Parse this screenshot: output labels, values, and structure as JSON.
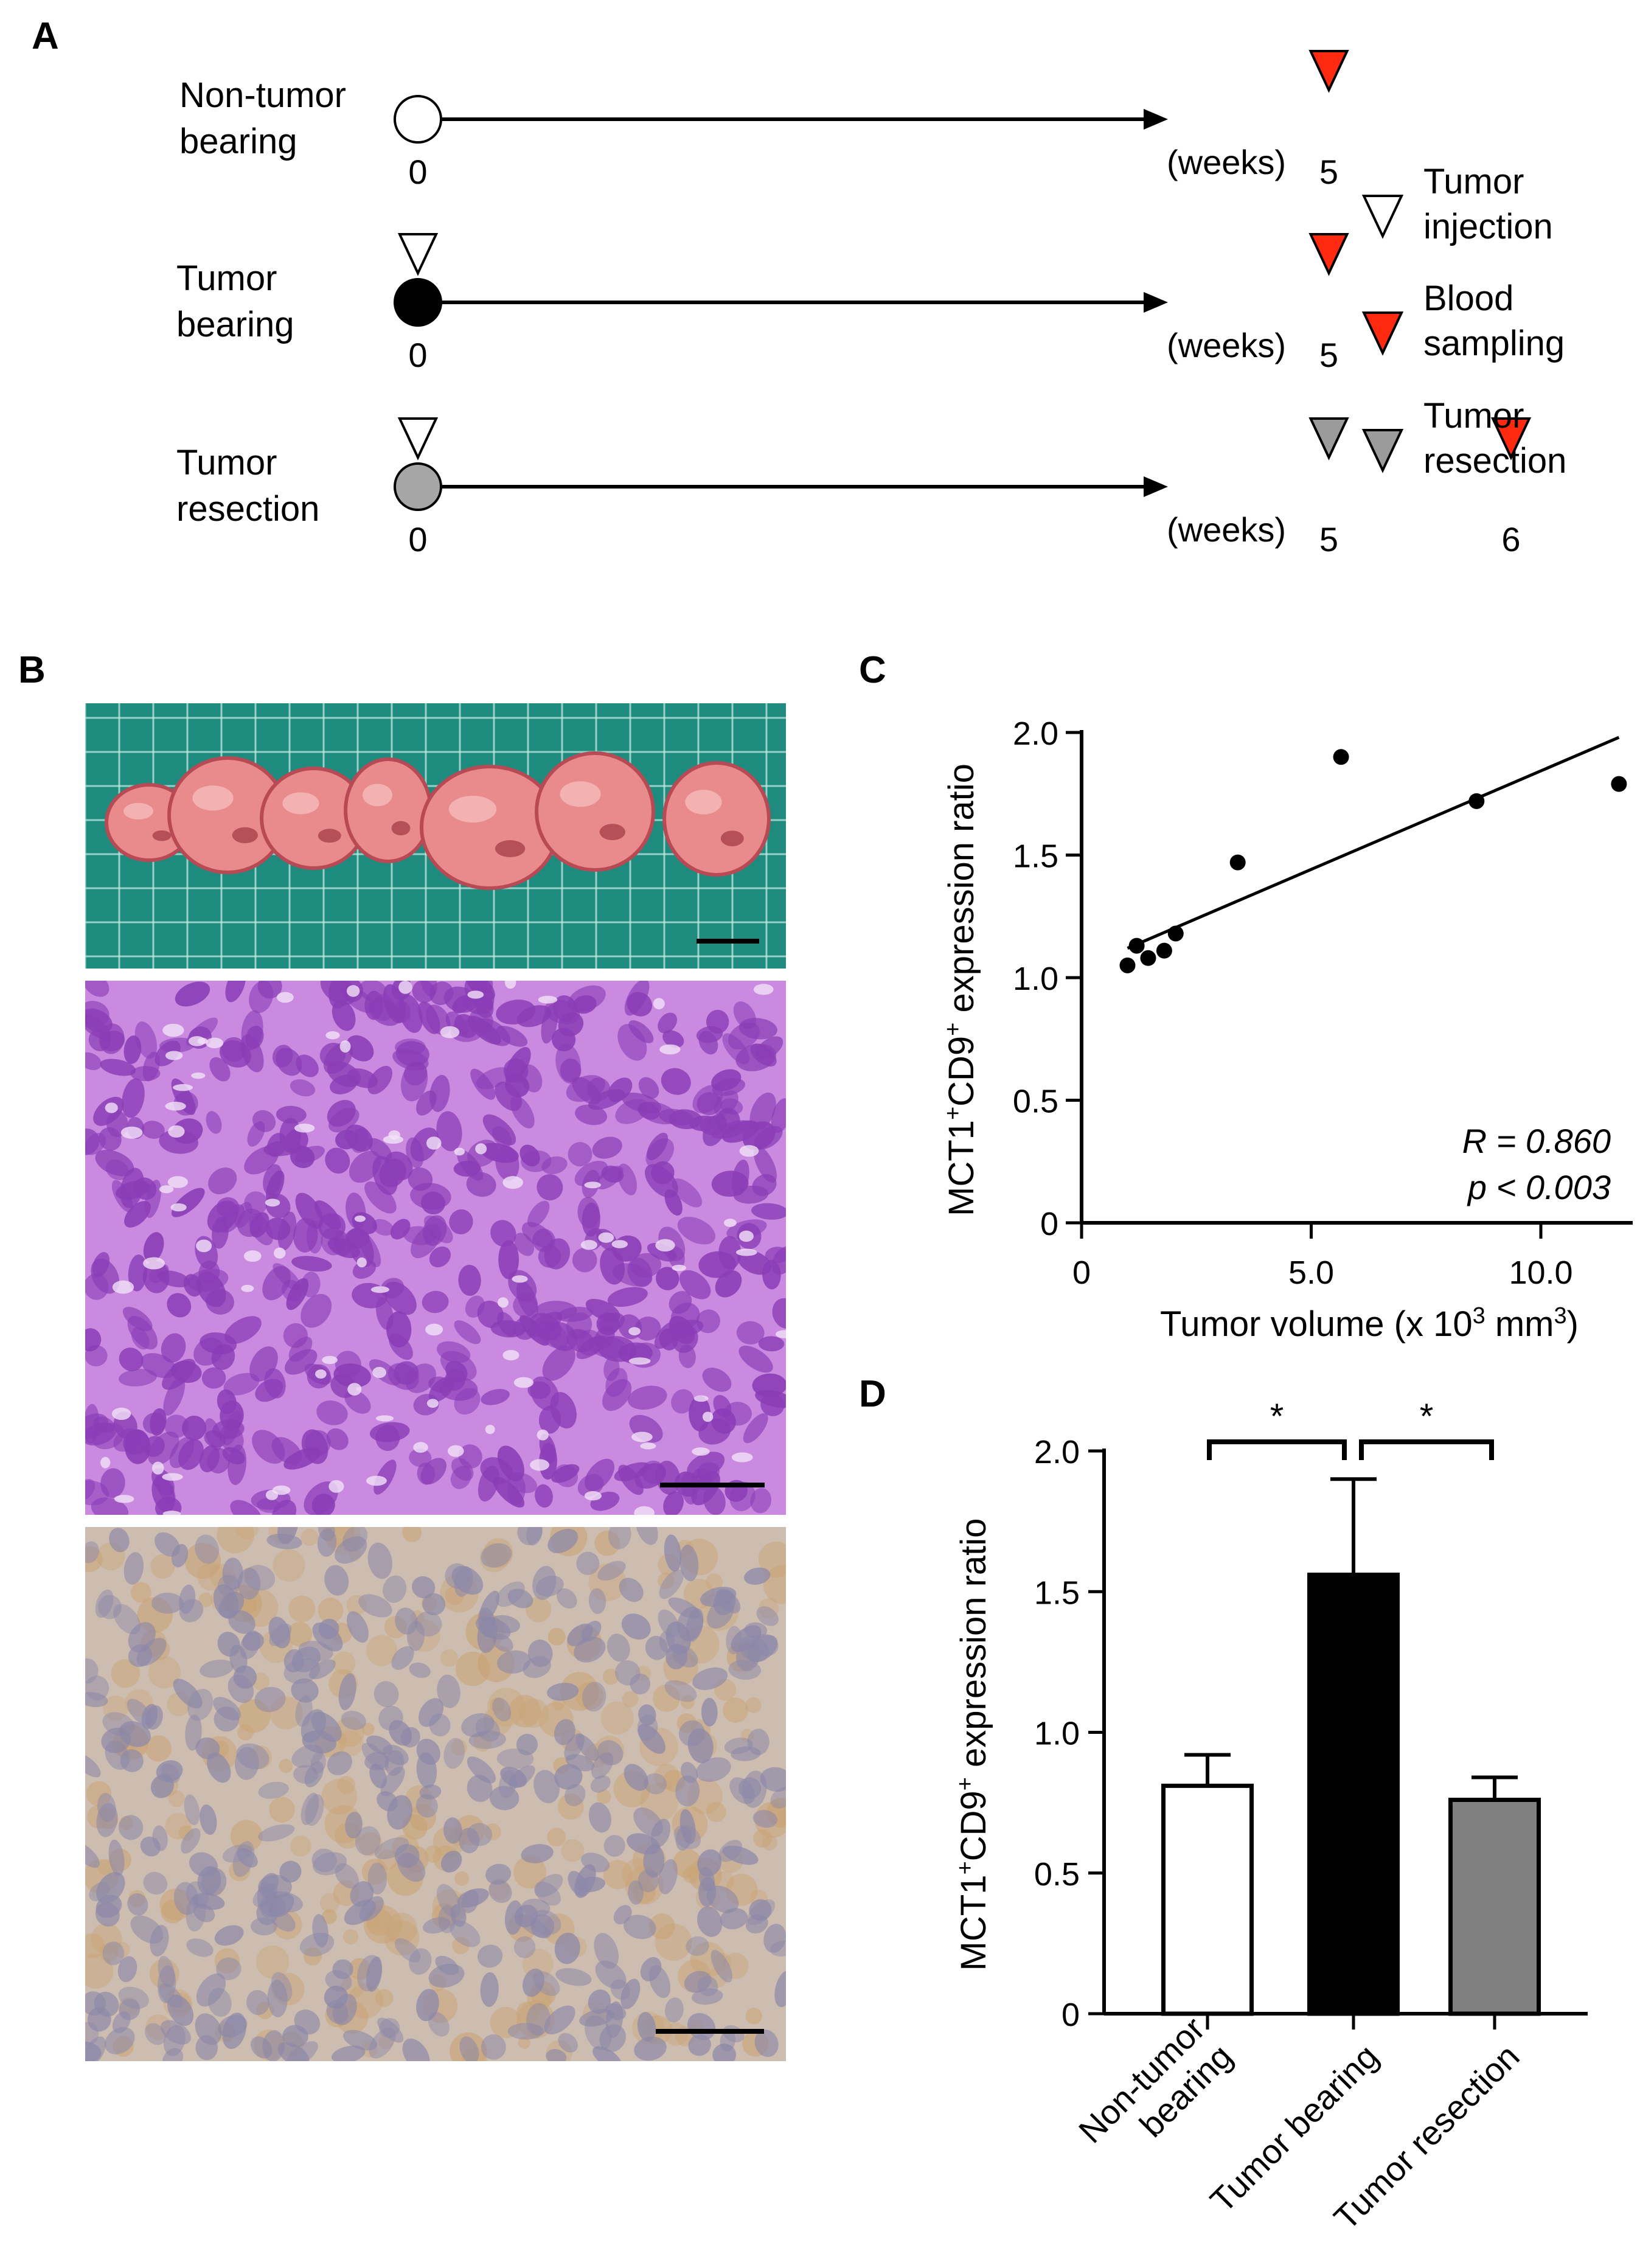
{
  "panels": {
    "A": {
      "letter": "A",
      "timelines": [
        {
          "label_lines": [
            "Non-tumor",
            "bearing"
          ],
          "circle_fill": "#ffffff",
          "ticks": [
            {
              "week": 0,
              "label": "0"
            },
            {
              "week": 5,
              "label": "5"
            }
          ],
          "markers": [
            {
              "week": 5,
              "type": "blood-sampling"
            }
          ],
          "unit": "(weeks)"
        },
        {
          "label_lines": [
            "Tumor",
            "bearing"
          ],
          "circle_fill": "#000000",
          "ticks": [
            {
              "week": 0,
              "label": "0"
            },
            {
              "week": 5,
              "label": "5"
            }
          ],
          "markers": [
            {
              "week": 0,
              "type": "tumor-injection"
            },
            {
              "week": 5,
              "type": "blood-sampling"
            }
          ],
          "unit": "(weeks)"
        },
        {
          "label_lines": [
            "Tumor",
            "resection"
          ],
          "circle_fill": "#a6a6a6",
          "ticks": [
            {
              "week": 0,
              "label": "0"
            },
            {
              "week": 5,
              "label": "5"
            },
            {
              "week": 6,
              "label": "6"
            }
          ],
          "markers": [
            {
              "week": 0,
              "type": "tumor-injection"
            },
            {
              "week": 5,
              "type": "tumor-resection"
            },
            {
              "week": 6,
              "type": "blood-sampling"
            }
          ],
          "unit": "(weeks)"
        }
      ],
      "legend": [
        {
          "type": "tumor-injection",
          "lines": [
            "Tumor",
            "injection"
          ]
        },
        {
          "type": "blood-sampling",
          "lines": [
            "Blood",
            "sampling"
          ]
        },
        {
          "type": "tumor-resection",
          "lines": [
            "Tumor",
            "resection"
          ]
        }
      ],
      "marker_colors": {
        "tumor-injection": "#ffffff",
        "blood-sampling": "#ff2a10",
        "tumor-resection": "#9b9b9b"
      }
    },
    "B": {
      "letter": "B",
      "tumor_photo": {
        "background": "#1f8a7e",
        "grid_color": "#bfe8e0",
        "tumor_color": "#e98a8c",
        "tumor_count": 7
      },
      "he_stain": {
        "background": "#c98ae0",
        "nucleus_color": "#8a3db6"
      },
      "ihc_stain": {
        "background": "#cdbdb0",
        "nucleus_color": "#8c88a8",
        "stain_color": "#c9a476"
      }
    },
    "C": {
      "letter": "C",
      "stats": [
        "R = 0.860",
        "p < 0.003"
      ]
    },
    "D": {
      "letter": "D",
      "significance": [
        "*",
        "*"
      ]
    }
  },
  "chart_data": [
    {
      "type": "scatter",
      "panel": "C",
      "xlabel_main": "Tumor volume (x 10",
      "xlabel_sup": "3",
      "xlabel_mid": " mm",
      "xlabel_sup2": "3",
      "xlabel_end": ")",
      "ylabel_parts": [
        "MCT1",
        "+",
        "CD9",
        "+",
        " expression ratio"
      ],
      "xlim": [
        0,
        12
      ],
      "ylim": [
        0,
        2.0
      ],
      "xticks": [
        {
          "v": 0,
          "label": "0"
        },
        {
          "v": 5,
          "label": "5.0"
        },
        {
          "v": 10,
          "label": "10.0"
        }
      ],
      "yticks": [
        {
          "v": 0,
          "label": "0"
        },
        {
          "v": 0.5,
          "label": "0.5"
        },
        {
          "v": 1.0,
          "label": "1.0"
        },
        {
          "v": 1.5,
          "label": "1.5"
        },
        {
          "v": 2.0,
          "label": "2.0"
        }
      ],
      "points": [
        {
          "x": 1.0,
          "y": 1.05
        },
        {
          "x": 1.2,
          "y": 1.13
        },
        {
          "x": 1.45,
          "y": 1.08
        },
        {
          "x": 1.8,
          "y": 1.11
        },
        {
          "x": 2.05,
          "y": 1.18
        },
        {
          "x": 3.4,
          "y": 1.47
        },
        {
          "x": 5.65,
          "y": 1.9
        },
        {
          "x": 8.6,
          "y": 1.72
        },
        {
          "x": 11.7,
          "y": 1.79
        }
      ],
      "fit_line": {
        "x": [
          1.0,
          11.7
        ],
        "y": [
          1.12,
          1.98
        ]
      },
      "grid": false
    },
    {
      "type": "bar",
      "panel": "D",
      "ylabel_parts": [
        "MCT1",
        "+",
        "CD9",
        "+",
        " expression ratio"
      ],
      "ylim": [
        0,
        2.0
      ],
      "yticks": [
        {
          "v": 0,
          "label": "0"
        },
        {
          "v": 0.5,
          "label": "0.5"
        },
        {
          "v": 1.0,
          "label": "1.0"
        },
        {
          "v": 1.5,
          "label": "1.5"
        },
        {
          "v": 2.0,
          "label": "2.0"
        }
      ],
      "categories": [
        {
          "lines": [
            "Non-tumor",
            "bearing"
          ]
        },
        {
          "lines": [
            "Tumor bearing"
          ]
        },
        {
          "lines": [
            "Tumor resection"
          ]
        }
      ],
      "values": [
        0.81,
        1.56,
        0.76
      ],
      "errors": [
        0.11,
        0.34,
        0.08
      ],
      "colors": [
        "#ffffff",
        "#000000",
        "#808080"
      ],
      "significance_pairs": [
        [
          0,
          1
        ],
        [
          1,
          2
        ]
      ],
      "grid": false
    }
  ]
}
